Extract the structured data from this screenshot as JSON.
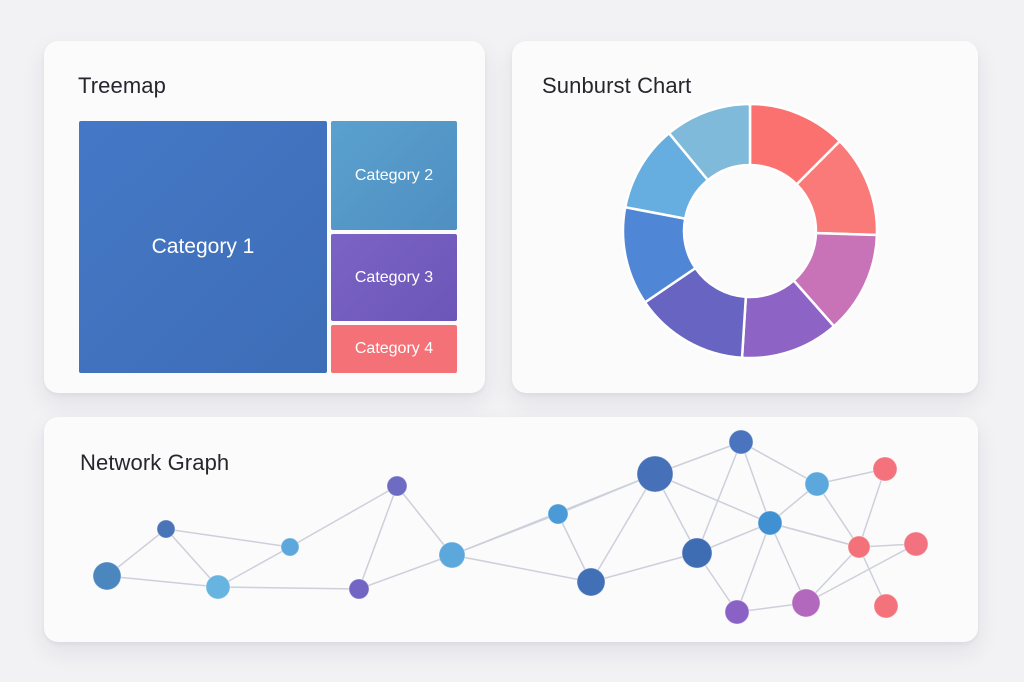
{
  "treemap": {
    "title": "Treemap",
    "cells": [
      {
        "label": "Category 1"
      },
      {
        "label": "Category 2"
      },
      {
        "label": "Category 3"
      },
      {
        "label": "Category 4"
      }
    ]
  },
  "sunburst": {
    "title": "Sunburst Chart"
  },
  "network": {
    "title": "Network Graph"
  },
  "chart_data": [
    {
      "type": "treemap",
      "title": "Treemap",
      "categories": [
        "Category 1",
        "Category 2",
        "Category 3",
        "Category 4"
      ],
      "values": [
        62.5,
        13.5,
        11,
        6
      ],
      "colors": [
        "#4174c0",
        "#559ac9",
        "#735dbe",
        "#f47277"
      ]
    },
    {
      "type": "pie",
      "title": "Sunburst Chart",
      "variant": "donut",
      "values": [
        12.5,
        13,
        13,
        12.5,
        14.5,
        12.5,
        11,
        11
      ],
      "colors": [
        "#fa716f",
        "#f97a78",
        "#c872b8",
        "#8e63c6",
        "#6764c2",
        "#5086d6",
        "#66ade0",
        "#7fbadb"
      ]
    },
    {
      "type": "network",
      "title": "Network Graph",
      "nodes": [
        {
          "id": "n1",
          "color": "#4c86be"
        },
        {
          "id": "n2",
          "color": "#4a74b8"
        },
        {
          "id": "n3",
          "color": "#68b4e0"
        },
        {
          "id": "n4",
          "color": "#5ca8dc"
        },
        {
          "id": "n5",
          "color": "#6d6cc2"
        },
        {
          "id": "n6",
          "color": "#7365c4"
        },
        {
          "id": "n7",
          "color": "#5ca8dc"
        },
        {
          "id": "n8",
          "color": "#4a9ad8"
        },
        {
          "id": "n9",
          "color": "#4170b6"
        },
        {
          "id": "n10",
          "color": "#4670b8"
        },
        {
          "id": "n11",
          "color": "#3f6db4"
        },
        {
          "id": "n12",
          "color": "#4a74bd"
        },
        {
          "id": "n13",
          "color": "#4090d2"
        },
        {
          "id": "n14",
          "color": "#5ca8dc"
        },
        {
          "id": "n15",
          "color": "#8a62c6"
        },
        {
          "id": "n16",
          "color": "#b268bc"
        },
        {
          "id": "n17",
          "color": "#f37279"
        },
        {
          "id": "n18",
          "color": "#f3727c"
        },
        {
          "id": "n19",
          "color": "#f3727c"
        },
        {
          "id": "n20",
          "color": "#f27280"
        }
      ],
      "edges": [
        [
          "n1",
          "n2"
        ],
        [
          "n1",
          "n3"
        ],
        [
          "n2",
          "n3"
        ],
        [
          "n2",
          "n4"
        ],
        [
          "n3",
          "n4"
        ],
        [
          "n4",
          "n5"
        ],
        [
          "n5",
          "n6"
        ],
        [
          "n6",
          "n7"
        ],
        [
          "n5",
          "n7"
        ],
        [
          "n3",
          "n6"
        ],
        [
          "n7",
          "n8"
        ],
        [
          "n7",
          "n9"
        ],
        [
          "n8",
          "n9"
        ],
        [
          "n9",
          "n10"
        ],
        [
          "n9",
          "n11"
        ],
        [
          "n8",
          "n10"
        ],
        [
          "n7",
          "n10"
        ],
        [
          "n10",
          "n11"
        ],
        [
          "n11",
          "n12"
        ],
        [
          "n10",
          "n12"
        ],
        [
          "n10",
          "n13"
        ],
        [
          "n11",
          "n13"
        ],
        [
          "n12",
          "n13"
        ],
        [
          "n12",
          "n14"
        ],
        [
          "n13",
          "n14"
        ],
        [
          "n11",
          "n15"
        ],
        [
          "n13",
          "n15"
        ],
        [
          "n15",
          "n16"
        ],
        [
          "n13",
          "n16"
        ],
        [
          "n16",
          "n17"
        ],
        [
          "n13",
          "n17"
        ],
        [
          "n14",
          "n17"
        ],
        [
          "n14",
          "n18"
        ],
        [
          "n17",
          "n18"
        ],
        [
          "n17",
          "n19"
        ],
        [
          "n17",
          "n20"
        ],
        [
          "n16",
          "n20"
        ],
        [
          "n13",
          "n17"
        ]
      ]
    }
  ]
}
